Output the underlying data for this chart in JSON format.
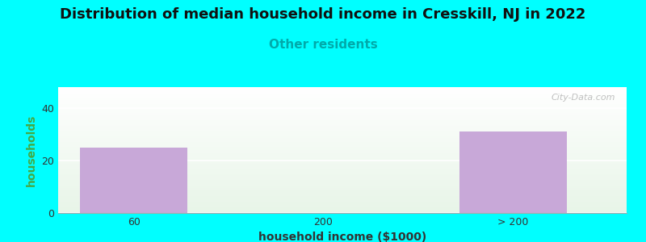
{
  "title": "Distribution of median household income in Cresskill, NJ in 2022",
  "subtitle": "Other residents",
  "xlabel": "household income ($1000)",
  "ylabel": "households",
  "categories": [
    "60",
    "200",
    "> 200"
  ],
  "values": [
    25,
    0,
    31
  ],
  "bar_color": "#c8a8d8",
  "background_color": "#00ffff",
  "ylim": [
    0,
    48
  ],
  "yticks": [
    0,
    20,
    40
  ],
  "title_fontsize": 13,
  "subtitle_fontsize": 11,
  "subtitle_color": "#00aaaa",
  "axis_label_fontsize": 10,
  "tick_fontsize": 9,
  "ylabel_color": "#44aa44",
  "xlabel_color": "#333333",
  "watermark": "City-Data.com"
}
